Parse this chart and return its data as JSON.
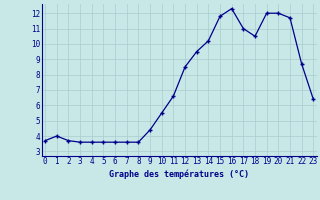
{
  "hours": [
    0,
    1,
    2,
    3,
    4,
    5,
    6,
    7,
    8,
    9,
    10,
    11,
    12,
    13,
    14,
    15,
    16,
    17,
    18,
    19,
    20,
    21,
    22,
    23
  ],
  "temps": [
    3.7,
    4.0,
    3.7,
    3.6,
    3.6,
    3.6,
    3.6,
    3.6,
    3.6,
    4.4,
    5.5,
    6.6,
    8.5,
    9.5,
    10.2,
    11.8,
    12.3,
    11.0,
    10.5,
    12.0,
    12.0,
    11.7,
    8.7,
    6.4
  ],
  "xlabel": "Graphe des températures (°C)",
  "yticks": [
    3,
    4,
    5,
    6,
    7,
    8,
    9,
    10,
    11,
    12
  ],
  "xticks": [
    0,
    1,
    2,
    3,
    4,
    5,
    6,
    7,
    8,
    9,
    10,
    11,
    12,
    13,
    14,
    15,
    16,
    17,
    18,
    19,
    20,
    21,
    22,
    23
  ],
  "line_color": "#00008B",
  "marker": "+",
  "bg_color": "#C8E8E8",
  "grid_color": "#AACCCC",
  "tick_label_color": "#00008B",
  "xlabel_color": "#00008B",
  "axis_label_fontsize": 6,
  "tick_fontsize": 5.5
}
